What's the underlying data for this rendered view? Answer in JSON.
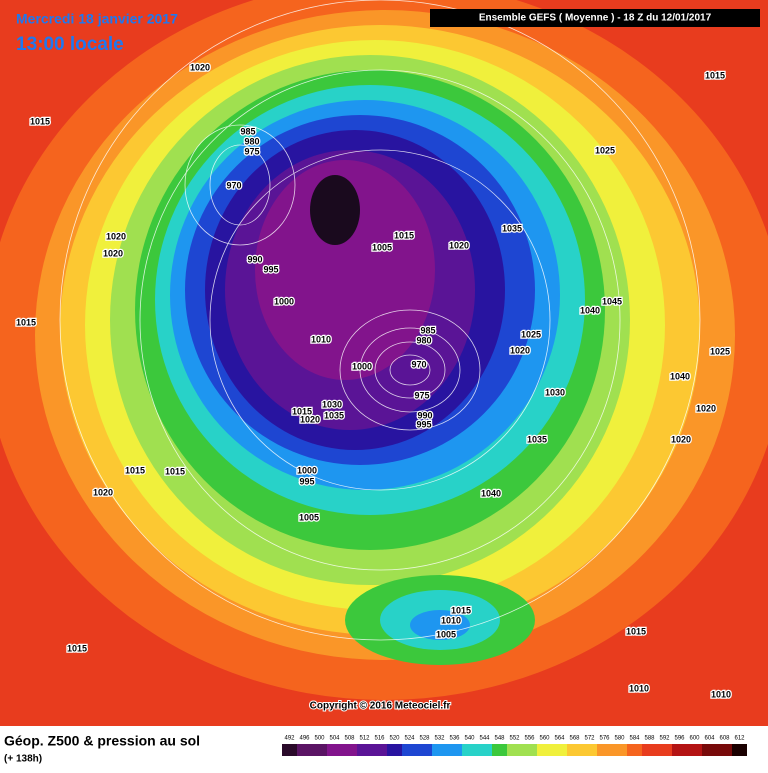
{
  "header": {
    "date": "Mercredi 18 janvier 2017",
    "time": "13:00 locale",
    "run": "Ensemble GEFS  ( Moyenne )  -  18 Z du 12/01/2017"
  },
  "map": {
    "isobar_labels": [
      1020,
      1015,
      1015,
      985,
      980,
      975,
      970,
      1025,
      1020,
      1020,
      990,
      995,
      1005,
      1015,
      1020,
      1035,
      1045,
      1040,
      1000,
      1015,
      1010,
      985,
      980,
      970,
      1000,
      1025,
      1020,
      1025,
      1040,
      975,
      990,
      995,
      1030,
      1035,
      1015,
      1020,
      1030,
      1020,
      1020,
      1035,
      1015,
      1015,
      1000,
      995,
      1020,
      1040,
      1005,
      1015,
      1010,
      1005,
      1015,
      1015,
      1010,
      1010
    ],
    "copyright": "Copyright © 2016 Meteociel.fr"
  },
  "footer": {
    "title": "Géop. Z500 & pression au sol",
    "lead": "(+ 138h)",
    "scale": [
      492,
      496,
      500,
      504,
      508,
      512,
      516,
      520,
      524,
      528,
      532,
      536,
      540,
      544,
      548,
      552,
      556,
      560,
      564,
      568,
      572,
      576,
      580,
      584,
      588,
      592,
      596,
      600,
      604,
      608,
      612
    ]
  }
}
